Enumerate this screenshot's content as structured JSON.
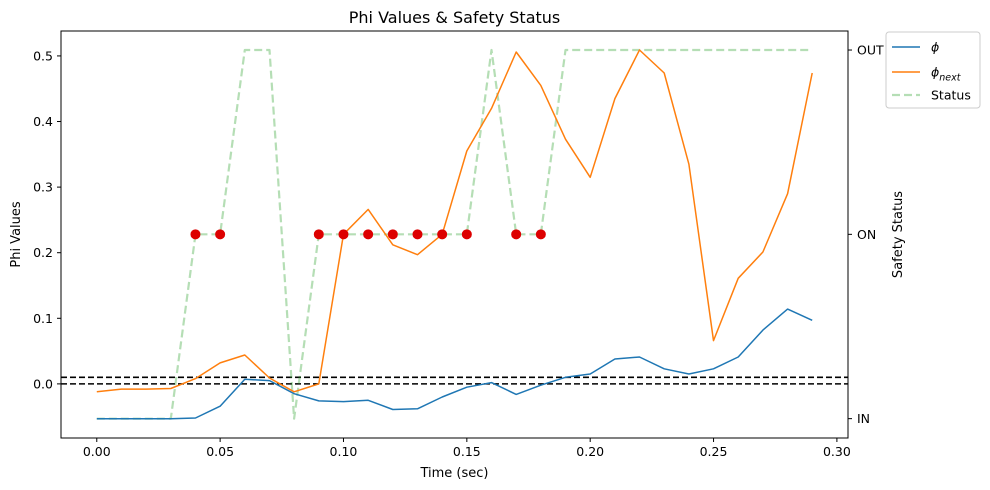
{
  "chart_data": {
    "type": "line",
    "title": "Phi Values & Safety Status",
    "xlabel": "Time (sec)",
    "ylabel": "Phi Values",
    "y2label": "Safety Status",
    "xlim": [
      -0.0145,
      0.3045
    ],
    "ylim": [
      -0.0825,
      0.538
    ],
    "xticks": [
      0.0,
      0.05,
      0.1,
      0.15,
      0.2,
      0.25,
      0.3
    ],
    "xtick_labels": [
      "0.00",
      "0.05",
      "0.10",
      "0.15",
      "0.20",
      "0.25",
      "0.30"
    ],
    "yticks": [
      0.0,
      0.1,
      0.2,
      0.3,
      0.4,
      0.5
    ],
    "ytick_labels": [
      "0.0",
      "0.1",
      "0.2",
      "0.3",
      "0.4",
      "0.5"
    ],
    "y2lim": [
      -0.0825,
      0.538
    ],
    "y2ticks": [
      -0.053,
      0.228,
      0.509
    ],
    "y2tick_labels": [
      "IN",
      "ON",
      "OUT"
    ],
    "grid": false,
    "legend_position": "outside-top-right",
    "x": [
      0.0,
      0.01,
      0.02,
      0.03,
      0.04,
      0.05,
      0.06,
      0.07,
      0.08,
      0.09,
      0.1,
      0.11,
      0.12,
      0.13,
      0.14,
      0.15,
      0.16,
      0.17,
      0.18,
      0.19,
      0.2,
      0.21,
      0.22,
      0.23,
      0.24,
      0.25,
      0.26,
      0.27,
      0.28,
      0.29
    ],
    "series": [
      {
        "name": "$\\phi$",
        "color": "#1f77b4",
        "style": "solid",
        "values": [
          -0.053,
          -0.053,
          -0.053,
          -0.053,
          -0.052,
          -0.034,
          0.007,
          0.005,
          -0.015,
          -0.026,
          -0.027,
          -0.025,
          -0.039,
          -0.038,
          -0.02,
          -0.005,
          0.002,
          -0.016,
          -0.002,
          0.01,
          0.015,
          0.038,
          0.041,
          0.023,
          0.015,
          0.023,
          0.041,
          0.082,
          0.114,
          0.097
        ]
      },
      {
        "name": "$\\phi_{next}$",
        "color": "#ff7f0e",
        "style": "solid",
        "values": [
          -0.012,
          -0.008,
          -0.008,
          -0.007,
          0.008,
          0.032,
          0.044,
          0.009,
          -0.012,
          0.0,
          0.228,
          0.266,
          0.212,
          0.197,
          0.228,
          0.355,
          0.42,
          0.506,
          0.455,
          0.373,
          0.315,
          0.435,
          0.509,
          0.474,
          0.335,
          0.066,
          0.161,
          0.201,
          0.29,
          0.474
        ]
      },
      {
        "name": "Status",
        "color": "#2ca02c",
        "style": "dashed",
        "alpha": 0.35,
        "values": [
          -0.053,
          -0.053,
          -0.053,
          -0.053,
          0.228,
          0.228,
          0.509,
          0.509,
          -0.053,
          0.228,
          0.228,
          0.228,
          0.228,
          0.228,
          0.228,
          0.228,
          0.509,
          0.228,
          0.228,
          0.509,
          0.509,
          0.509,
          0.509,
          0.509,
          0.509,
          0.509,
          0.509,
          0.509,
          0.509,
          0.509
        ]
      }
    ],
    "markers": {
      "color": "#dd0000",
      "x": [
        0.04,
        0.05,
        0.09,
        0.1,
        0.11,
        0.12,
        0.13,
        0.14,
        0.15,
        0.17,
        0.18
      ],
      "y": [
        0.228,
        0.228,
        0.228,
        0.228,
        0.228,
        0.228,
        0.228,
        0.228,
        0.228,
        0.228,
        0.228
      ]
    },
    "hlines": [
      {
        "y": 0.0,
        "color": "#000000",
        "style": "dashed"
      },
      {
        "y": 0.01,
        "color": "#000000",
        "style": "dashed"
      }
    ]
  }
}
